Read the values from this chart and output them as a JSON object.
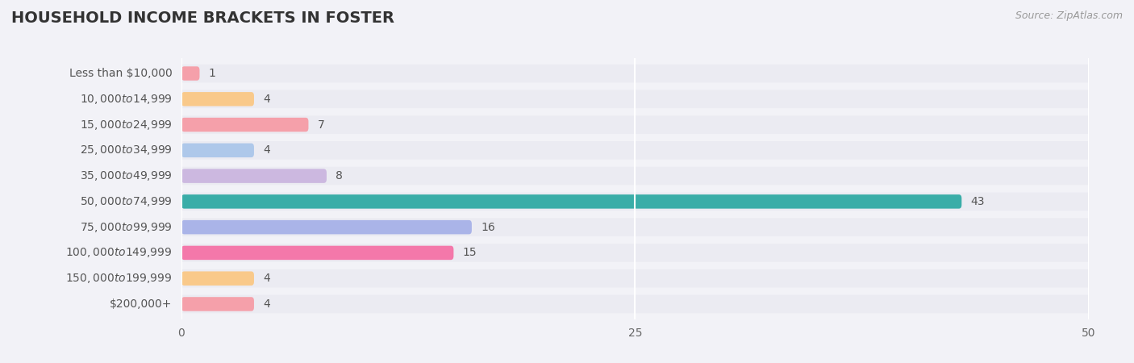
{
  "title": "HOUSEHOLD INCOME BRACKETS IN FOSTER",
  "source": "Source: ZipAtlas.com",
  "categories": [
    "Less than $10,000",
    "$10,000 to $14,999",
    "$15,000 to $24,999",
    "$25,000 to $34,999",
    "$35,000 to $49,999",
    "$50,000 to $74,999",
    "$75,000 to $99,999",
    "$100,000 to $149,999",
    "$150,000 to $199,999",
    "$200,000+"
  ],
  "values": [
    1,
    4,
    7,
    4,
    8,
    43,
    16,
    15,
    4,
    4
  ],
  "bar_colors": [
    "#f5a0aa",
    "#f9c98a",
    "#f5a0aa",
    "#aec8ea",
    "#ccb8e0",
    "#3aada8",
    "#aab4e8",
    "#f478aa",
    "#f9c98a",
    "#f5a0aa"
  ],
  "xlim": [
    0,
    50
  ],
  "xticks": [
    0,
    25,
    50
  ],
  "background_color": "#f2f2f7",
  "bar_bg_color": "#e6e6f0",
  "row_bg_color": "#ebebf2",
  "title_fontsize": 14,
  "label_fontsize": 10,
  "value_fontsize": 10,
  "tick_fontsize": 10,
  "source_fontsize": 9,
  "bar_height": 0.55
}
